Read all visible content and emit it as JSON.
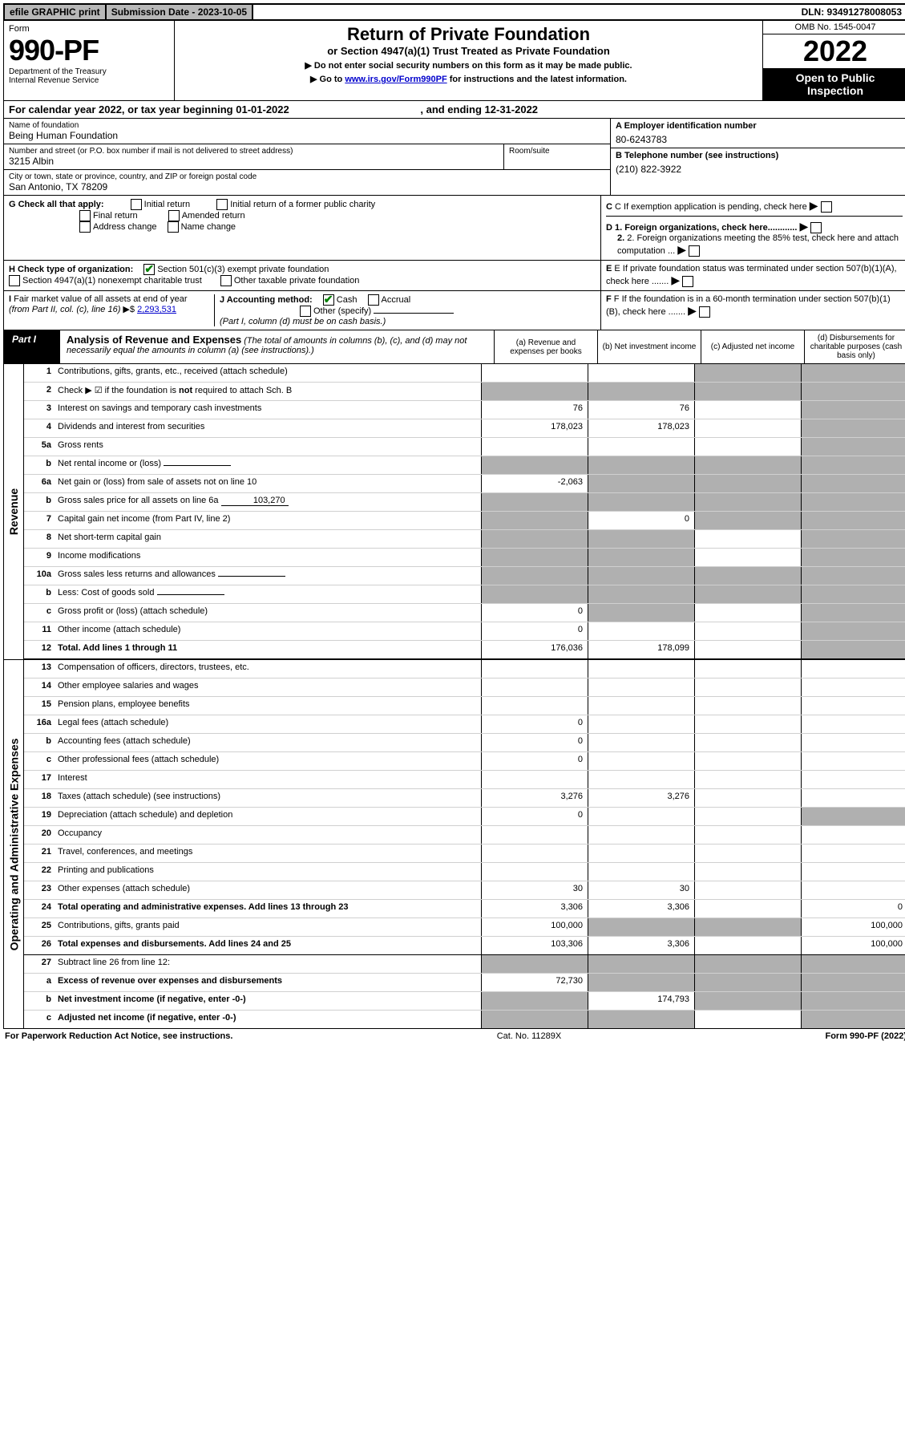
{
  "topbar": {
    "efile": "efile GRAPHIC print",
    "sub_label": "Submission Date - 2023-10-05",
    "dln": "DLN: 93491278008053"
  },
  "header": {
    "form_word": "Form",
    "form_no": "990-PF",
    "dept": "Department of the Treasury\nInternal Revenue Service",
    "title": "Return of Private Foundation",
    "subtitle": "or Section 4947(a)(1) Trust Treated as Private Foundation",
    "note1": "▶ Do not enter social security numbers on this form as it may be made public.",
    "note2_pre": "▶ Go to ",
    "note2_link": "www.irs.gov/Form990PF",
    "note2_post": " for instructions and the latest information.",
    "omb": "OMB No. 1545-0047",
    "year": "2022",
    "open": "Open to Public Inspection"
  },
  "calyear": {
    "text_pre": "For calendar year 2022, or tax year beginning ",
    "begin": "01-01-2022",
    "mid": " , and ending ",
    "end": "12-31-2022"
  },
  "info": {
    "name_label": "Name of foundation",
    "name": "Being Human Foundation",
    "addr_label": "Number and street (or P.O. box number if mail is not delivered to street address)",
    "addr": "3215 Albin",
    "room_label": "Room/suite",
    "city_label": "City or town, state or province, country, and ZIP or foreign postal code",
    "city": "San Antonio, TX  78209",
    "a_label": "A Employer identification number",
    "a_val": "80-6243783",
    "b_label": "B Telephone number (see instructions)",
    "b_val": "(210) 822-3922",
    "c_label": "C If exemption application is pending, check here",
    "d1": "D 1. Foreign organizations, check here............",
    "d2": "2. Foreign organizations meeting the 85% test, check here and attach computation ...",
    "e": "E If private foundation status was terminated under section 507(b)(1)(A), check here .......",
    "f": "F If the foundation is in a 60-month termination under section 507(b)(1)(B), check here .......",
    "g_label": "G Check all that apply:",
    "g_opts": [
      "Initial return",
      "Initial return of a former public charity",
      "Final return",
      "Amended return",
      "Address change",
      "Name change"
    ],
    "h_label": "H Check type of organization:",
    "h_opt1": "Section 501(c)(3) exempt private foundation",
    "h_opt2": "Section 4947(a)(1) nonexempt charitable trust",
    "h_opt3": "Other taxable private foundation",
    "i_label": "I Fair market value of all assets at end of year (from Part II, col. (c), line 16) ▶$ ",
    "i_val": "2,293,531",
    "j_label": "J Accounting method:",
    "j_cash": "Cash",
    "j_accrual": "Accrual",
    "j_other": "Other (specify)",
    "j_note": "(Part I, column (d) must be on cash basis.)"
  },
  "part1": {
    "label": "Part I",
    "title": "Analysis of Revenue and Expenses",
    "title_note": " (The total of amounts in columns (b), (c), and (d) may not necessarily equal the amounts in column (a) (see instructions).)",
    "col_a": "(a) Revenue and expenses per books",
    "col_b": "(b) Net investment income",
    "col_c": "(c) Adjusted net income",
    "col_d": "(d) Disbursements for charitable purposes (cash basis only)"
  },
  "revenue_label": "Revenue",
  "opex_label": "Operating and Administrative Expenses",
  "rows_rev": [
    {
      "no": "1",
      "desc": "Contributions, gifts, grants, etc., received (attach schedule)",
      "a": "",
      "b": "",
      "c_shade": true,
      "d_shade": true
    },
    {
      "no": "2",
      "desc_html": "Check ▶ ☑ if the foundation is <b>not</b> required to attach Sch. B",
      "a_shade": true,
      "b_shade": true,
      "c_shade": true,
      "d_shade": true
    },
    {
      "no": "3",
      "desc": "Interest on savings and temporary cash investments",
      "a": "76",
      "b": "76",
      "d_shade": true
    },
    {
      "no": "4",
      "desc": "Dividends and interest from securities",
      "a": "178,023",
      "b": "178,023",
      "d_shade": true
    },
    {
      "no": "5a",
      "desc": "Gross rents",
      "d_shade": true
    },
    {
      "no": "b",
      "desc": "Net rental income or (loss)",
      "inline": "",
      "a_shade": true,
      "b_shade": true,
      "c_shade": true,
      "d_shade": true
    },
    {
      "no": "6a",
      "desc": "Net gain or (loss) from sale of assets not on line 10",
      "a": "-2,063",
      "b_shade": true,
      "c_shade": true,
      "d_shade": true
    },
    {
      "no": "b",
      "desc": "Gross sales price for all assets on line 6a",
      "inline": "103,270",
      "a_shade": true,
      "b_shade": true,
      "c_shade": true,
      "d_shade": true
    },
    {
      "no": "7",
      "desc": "Capital gain net income (from Part IV, line 2)",
      "a_shade": true,
      "b": "0",
      "c_shade": true,
      "d_shade": true
    },
    {
      "no": "8",
      "desc": "Net short-term capital gain",
      "a_shade": true,
      "b_shade": true,
      "d_shade": true
    },
    {
      "no": "9",
      "desc": "Income modifications",
      "a_shade": true,
      "b_shade": true,
      "d_shade": true
    },
    {
      "no": "10a",
      "desc": "Gross sales less returns and allowances",
      "inline": "",
      "a_shade": true,
      "b_shade": true,
      "c_shade": true,
      "d_shade": true
    },
    {
      "no": "b",
      "desc": "Less: Cost of goods sold",
      "inline": "",
      "a_shade": true,
      "b_shade": true,
      "c_shade": true,
      "d_shade": true
    },
    {
      "no": "c",
      "desc": "Gross profit or (loss) (attach schedule)",
      "a": "0",
      "b_shade": true,
      "d_shade": true
    },
    {
      "no": "11",
      "desc": "Other income (attach schedule)",
      "a": "0",
      "d_shade": true
    },
    {
      "no": "12",
      "desc": "Total. Add lines 1 through 11",
      "bold": true,
      "a": "176,036",
      "b": "178,099",
      "d_shade": true,
      "bordered": true
    }
  ],
  "rows_exp": [
    {
      "no": "13",
      "desc": "Compensation of officers, directors, trustees, etc."
    },
    {
      "no": "14",
      "desc": "Other employee salaries and wages"
    },
    {
      "no": "15",
      "desc": "Pension plans, employee benefits"
    },
    {
      "no": "16a",
      "desc": "Legal fees (attach schedule)",
      "a": "0"
    },
    {
      "no": "b",
      "desc": "Accounting fees (attach schedule)",
      "a": "0"
    },
    {
      "no": "c",
      "desc": "Other professional fees (attach schedule)",
      "a": "0"
    },
    {
      "no": "17",
      "desc": "Interest"
    },
    {
      "no": "18",
      "desc": "Taxes (attach schedule) (see instructions)",
      "a": "3,276",
      "b": "3,276"
    },
    {
      "no": "19",
      "desc": "Depreciation (attach schedule) and depletion",
      "a": "0",
      "d_shade": true
    },
    {
      "no": "20",
      "desc": "Occupancy"
    },
    {
      "no": "21",
      "desc": "Travel, conferences, and meetings"
    },
    {
      "no": "22",
      "desc": "Printing and publications"
    },
    {
      "no": "23",
      "desc": "Other expenses (attach schedule)",
      "a": "30",
      "b": "30"
    },
    {
      "no": "24",
      "desc": "Total operating and administrative expenses. Add lines 13 through 23",
      "bold": true,
      "a": "3,306",
      "b": "3,306",
      "c": "",
      "d": "0"
    },
    {
      "no": "25",
      "desc": "Contributions, gifts, grants paid",
      "a": "100,000",
      "b_shade": true,
      "c_shade": true,
      "d": "100,000"
    },
    {
      "no": "26",
      "desc": "Total expenses and disbursements. Add lines 24 and 25",
      "bold": true,
      "a": "103,306",
      "b": "3,306",
      "c": "",
      "d": "100,000",
      "bordered": true
    },
    {
      "no": "27",
      "desc": "Subtract line 26 from line 12:",
      "a_shade": true,
      "b_shade": true,
      "c_shade": true,
      "d_shade": true
    },
    {
      "no": "a",
      "desc": "Excess of revenue over expenses and disbursements",
      "bold": true,
      "a": "72,730",
      "b_shade": true,
      "c_shade": true,
      "d_shade": true
    },
    {
      "no": "b",
      "desc": "Net investment income (if negative, enter -0-)",
      "bold": true,
      "a_shade": true,
      "b": "174,793",
      "c_shade": true,
      "d_shade": true
    },
    {
      "no": "c",
      "desc": "Adjusted net income (if negative, enter -0-)",
      "bold": true,
      "a_shade": true,
      "b_shade": true,
      "d_shade": true
    }
  ],
  "footer": {
    "left": "For Paperwork Reduction Act Notice, see instructions.",
    "mid": "Cat. No. 11289X",
    "right": "Form 990-PF (2022)"
  }
}
